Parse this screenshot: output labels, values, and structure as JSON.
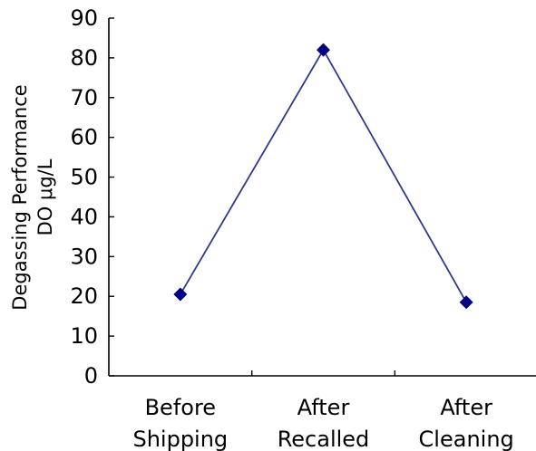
{
  "chart_data": {
    "type": "line",
    "title": "",
    "xlabel": "",
    "ylabel": [
      "Degassing Performance",
      "DO μg/L"
    ],
    "categories": [
      [
        "Before",
        "Shipping"
      ],
      [
        "After",
        "Recalled"
      ],
      [
        "After",
        "Cleaning"
      ]
    ],
    "series": [
      {
        "values": [
          20.5,
          82,
          18.5
        ],
        "color": "#2e3a8c",
        "marker": "diamond",
        "marker_color": "#000080"
      }
    ],
    "ylim": [
      0,
      90
    ],
    "yticks": [
      0,
      10,
      20,
      30,
      40,
      50,
      60,
      70,
      80,
      90
    ],
    "grid": false,
    "legend": "none"
  }
}
